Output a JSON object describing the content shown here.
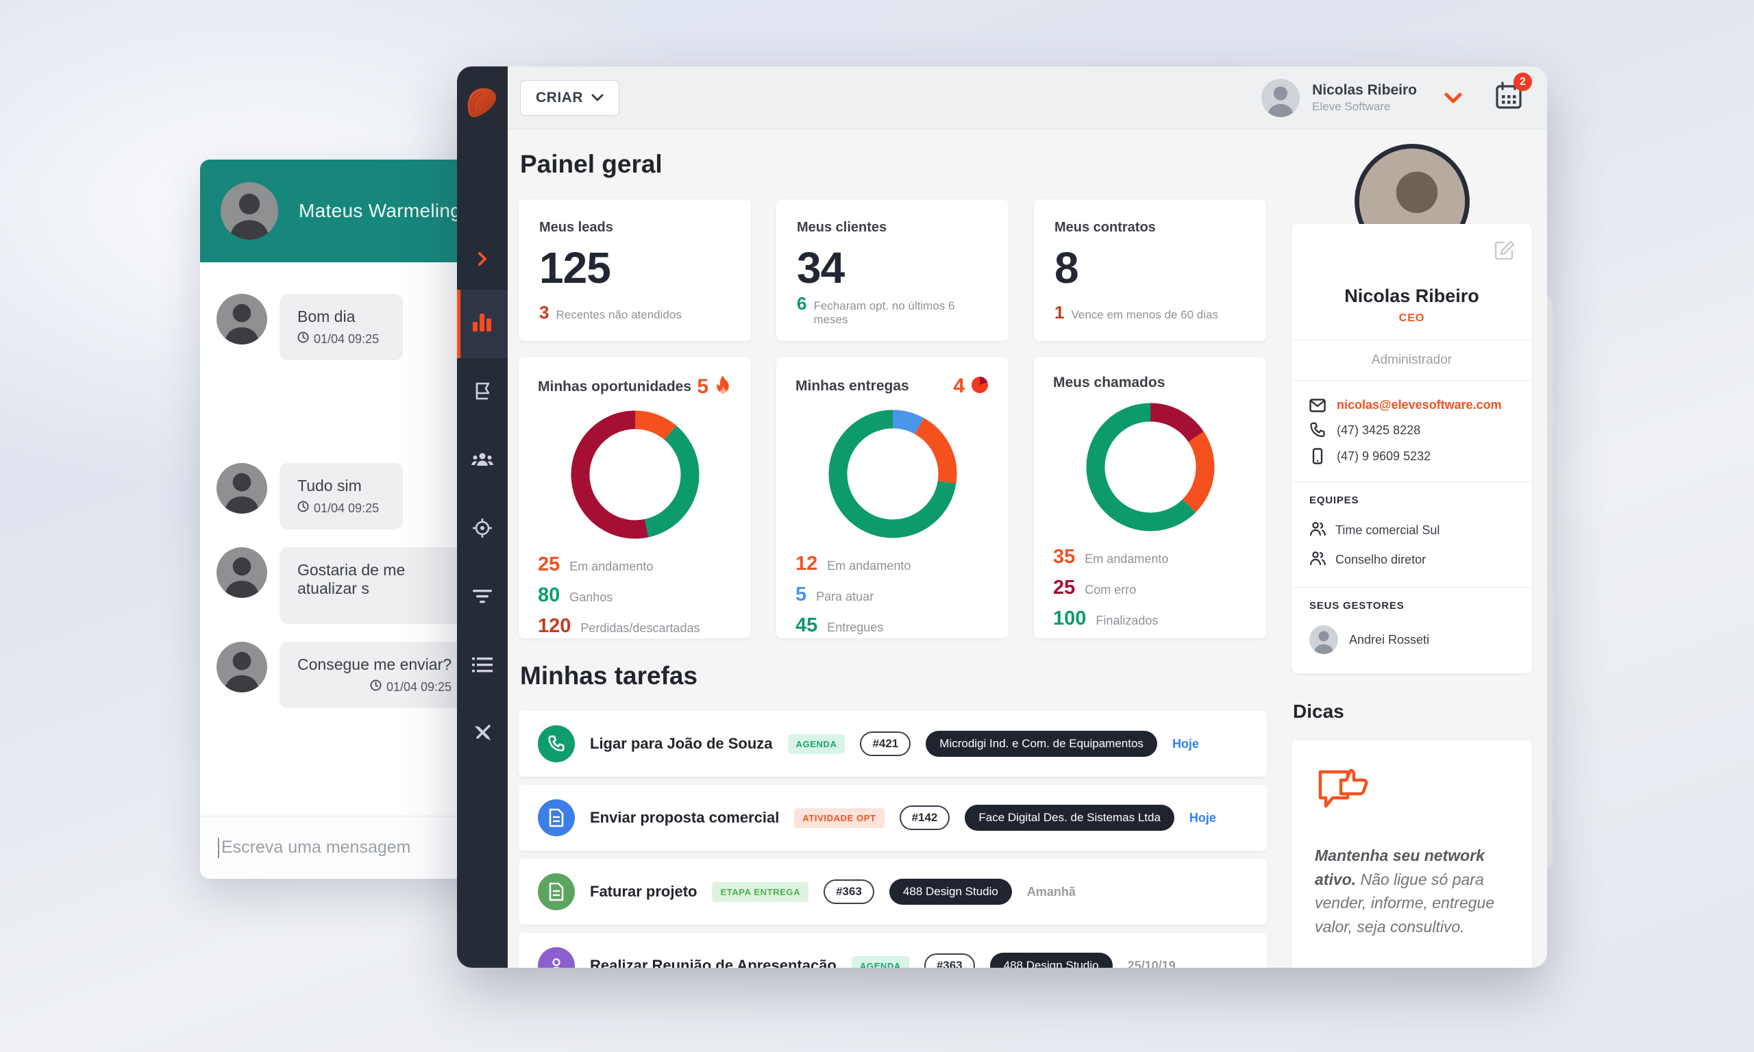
{
  "colors": {
    "accent": "#f4511e",
    "teal": "#17877c",
    "crimson": "#a50f33",
    "green": "#0d9b6c",
    "blue": "#4b96ea",
    "brick": "#c43d21",
    "dark": "#222733",
    "sidebar": "#262b38"
  },
  "chat": {
    "contact_name": "Mateus Warmeling",
    "messages": [
      {
        "text": "Bom dia",
        "time": "01/04 09:25",
        "time_align": "left",
        "gap_after": 150
      },
      {
        "text": "Tudo sim",
        "time": "01/04 09:25",
        "time_align": "left",
        "gap_after": 26
      },
      {
        "text": "Gostaria de me atualizar s",
        "time": "",
        "time_align": "left",
        "wide": true,
        "gap_after": 26
      },
      {
        "text": "Consegue me enviar?",
        "time": "01/04 09:25",
        "time_align": "right",
        "gap_after": 0
      }
    ],
    "input_placeholder": "Escreva uma mensagem"
  },
  "sidebar": {
    "items": [
      {
        "icon": "chevron-right-icon",
        "active": false
      },
      {
        "icon": "bar-chart-icon",
        "active": true
      },
      {
        "icon": "book-icon",
        "active": false
      },
      {
        "icon": "users-icon",
        "active": false
      },
      {
        "icon": "target-icon",
        "active": false
      },
      {
        "icon": "filter-icon",
        "active": false
      },
      {
        "icon": "list-icon",
        "active": false
      },
      {
        "icon": "tools-icon",
        "active": false
      }
    ]
  },
  "topbar": {
    "create_label": "CRIAR",
    "user_name": "Nicolas Ribeiro",
    "user_company": "Eleve Software",
    "notification_count": "2"
  },
  "page_title": "Painel geral",
  "stats": [
    {
      "title": "Meus leads",
      "value": "125",
      "highlight": "3",
      "highlight_color": "#c43d21",
      "note": "Recentes não atendidos"
    },
    {
      "title": "Meus clientes",
      "value": "34",
      "highlight": "6",
      "highlight_color": "#0d9b6c",
      "note": "Fecharam opt. no últimos 6 meses"
    },
    {
      "title": "Meus contratos",
      "value": "8",
      "highlight": "1",
      "highlight_color": "#c43d21",
      "note": "Vence em menos de 60 dias"
    }
  ],
  "chart_data": [
    {
      "type": "donut",
      "title": "Minhas oportunidades",
      "badge": {
        "value": "5",
        "icon": "flame-icon",
        "color": "#f4511e"
      },
      "segments": [
        {
          "label": "Em andamento",
          "value": 25,
          "color": "#f4511e",
          "text_color": "#f4511e"
        },
        {
          "label": "Ganhos",
          "value": 80,
          "color": "#0d9b6c",
          "text_color": "#0d9b6c"
        },
        {
          "label": "Perdidas/descartadas",
          "value": 120,
          "color": "#a50f33",
          "text_color": "#c43d21"
        }
      ],
      "draw_order": [
        0,
        1,
        2
      ]
    },
    {
      "type": "donut",
      "title": "Minhas entregas",
      "badge": {
        "value": "4",
        "icon": "clock-pie-icon",
        "color": "#f4511e"
      },
      "segments": [
        {
          "label": "Em andamento",
          "value": 12,
          "color": "#f4511e",
          "text_color": "#f4511e"
        },
        {
          "label": "Para atuar",
          "value": 5,
          "color": "#4b96ea",
          "text_color": "#4b96ea"
        },
        {
          "label": "Entregues",
          "value": 45,
          "color": "#0d9b6c",
          "text_color": "#0d9b6c"
        }
      ],
      "draw_order": [
        1,
        0,
        2
      ]
    },
    {
      "type": "donut",
      "title": "Meus chamados",
      "badge": null,
      "segments": [
        {
          "label": "Em andamento",
          "value": 35,
          "color": "#f4511e",
          "text_color": "#f4511e"
        },
        {
          "label": "Com erro",
          "value": 25,
          "color": "#a50f33",
          "text_color": "#a50f33"
        },
        {
          "label": "Finalizados",
          "value": 100,
          "color": "#0d9b6c",
          "text_color": "#0d9b6c"
        }
      ],
      "draw_order": [
        1,
        0,
        2
      ]
    }
  ],
  "tasks_title": "Minhas tarefas",
  "tasks": [
    {
      "icon": "phone-icon",
      "icon_bg": "#0e9d6e",
      "title": "Ligar para João de Souza",
      "tag": "AGENDA",
      "tag_bg": "#d8f5e8",
      "tag_color": "#1ca36a",
      "number": "#421",
      "company": "Microdigi Ind. e Com. de Equipamentos",
      "due": "Hoje",
      "due_color": "#2f80ed"
    },
    {
      "icon": "document-icon",
      "icon_bg": "#3d7ee8",
      "title": "Enviar proposta comercial",
      "tag": "ATIVIDADE OPT",
      "tag_bg": "#fce3dc",
      "tag_color": "#f4511e",
      "number": "#142",
      "company": "Face Digital Des. de Sistemas Ltda",
      "due": "Hoje",
      "due_color": "#2f80ed"
    },
    {
      "icon": "document-icon",
      "icon_bg": "#5ba55f",
      "title": "Faturar projeto",
      "tag": "ETAPA ENTREGA",
      "tag_bg": "#dff3e0",
      "tag_color": "#4caf50",
      "number": "#363",
      "company": "488 Design Studio",
      "due": "Amanhã",
      "due_color": "#9b9b9b"
    },
    {
      "icon": "person-icon",
      "icon_bg": "#8c5fd0",
      "title": "Realizar Reunião de Apresentação",
      "tag": "AGENDA",
      "tag_bg": "#d8f5e8",
      "tag_color": "#1ca36a",
      "number": "#363",
      "company": "488 Design Studio",
      "due": "25/10/19",
      "due_color": "#9b9b9b"
    }
  ],
  "profile": {
    "name": "Nicolas Ribeiro",
    "role": "CEO",
    "role_color": "#f4511e",
    "permission": "Administrador",
    "email": "nicolas@elevesoftware.com",
    "phone": "(47) 3425 8228",
    "mobile": "(47) 9 9609 5232",
    "teams_heading": "EQUIPES",
    "teams": [
      "Time comercial Sul",
      "Conselho diretor"
    ],
    "managers_heading": "SEUS GESTORES",
    "managers": [
      "Andrei Rosseti"
    ]
  },
  "tips": {
    "title": "Dicas",
    "bold": "Mantenha seu network ativo.",
    "text": " Não ligue só para vender, informe, entregue valor, seja consultivo.",
    "dots_total": 8,
    "active_dot": 2
  }
}
